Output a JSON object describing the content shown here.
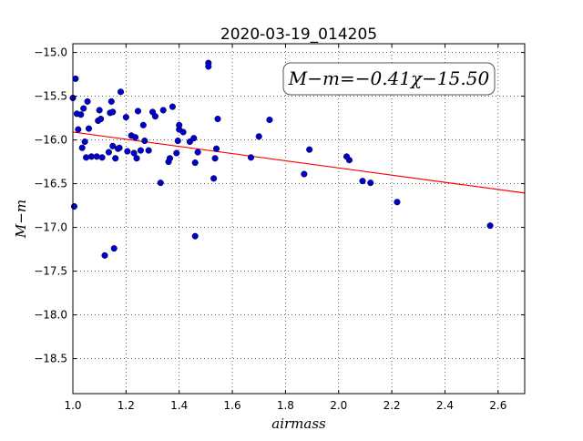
{
  "chart_data": {
    "type": "scatter",
    "title": "2020-03-19_014205",
    "xlabel": "airmass",
    "ylabel": "M−m",
    "xlim": [
      1.0,
      2.7
    ],
    "ylim": [
      -14.9,
      -18.9
    ],
    "y_axis_inverted": true,
    "grid": true,
    "xticks": [
      "1.0",
      "1.2",
      "1.4",
      "1.6",
      "1.8",
      "2.0",
      "2.2",
      "2.4",
      "2.6"
    ],
    "yticks": [
      "−15.0",
      "−15.5",
      "−16.0",
      "−16.5",
      "−17.0",
      "−17.5",
      "−18.0",
      "−18.5"
    ],
    "annotation": "M−m=−0.41χ−15.50",
    "fit": {
      "slope": -0.41,
      "intercept": -15.5,
      "color": "#ff0000"
    },
    "point_color": "#0000cc",
    "points": [
      [
        1.0,
        -15.52
      ],
      [
        1.005,
        -16.76
      ],
      [
        1.01,
        -15.3
      ],
      [
        1.015,
        -15.7
      ],
      [
        1.02,
        -15.88
      ],
      [
        1.03,
        -15.71
      ],
      [
        1.035,
        -16.09
      ],
      [
        1.04,
        -15.64
      ],
      [
        1.045,
        -16.02
      ],
      [
        1.05,
        -16.2
      ],
      [
        1.055,
        -15.56
      ],
      [
        1.06,
        -15.87
      ],
      [
        1.07,
        -16.19
      ],
      [
        1.09,
        -16.19
      ],
      [
        1.095,
        -15.78
      ],
      [
        1.1,
        -15.66
      ],
      [
        1.105,
        -15.76
      ],
      [
        1.11,
        -16.2
      ],
      [
        1.12,
        -17.32
      ],
      [
        1.135,
        -16.14
      ],
      [
        1.14,
        -15.69
      ],
      [
        1.145,
        -15.56
      ],
      [
        1.15,
        -15.68
      ],
      [
        1.15,
        -16.07
      ],
      [
        1.155,
        -17.24
      ],
      [
        1.16,
        -16.21
      ],
      [
        1.17,
        -16.1
      ],
      [
        1.175,
        -16.09
      ],
      [
        1.18,
        -15.45
      ],
      [
        1.2,
        -15.74
      ],
      [
        1.205,
        -16.13
      ],
      [
        1.22,
        -15.95
      ],
      [
        1.23,
        -16.15
      ],
      [
        1.235,
        -15.97
      ],
      [
        1.24,
        -16.21
      ],
      [
        1.245,
        -15.67
      ],
      [
        1.255,
        -16.12
      ],
      [
        1.265,
        -15.83
      ],
      [
        1.27,
        -16.01
      ],
      [
        1.285,
        -16.12
      ],
      [
        1.3,
        -15.68
      ],
      [
        1.31,
        -15.73
      ],
      [
        1.33,
        -16.49
      ],
      [
        1.34,
        -15.66
      ],
      [
        1.36,
        -16.25
      ],
      [
        1.365,
        -16.21
      ],
      [
        1.375,
        -15.62
      ],
      [
        1.39,
        -16.15
      ],
      [
        1.395,
        -16.01
      ],
      [
        1.4,
        -15.83
      ],
      [
        1.4,
        -15.88
      ],
      [
        1.415,
        -15.91
      ],
      [
        1.44,
        -16.02
      ],
      [
        1.455,
        -15.98
      ],
      [
        1.46,
        -16.26
      ],
      [
        1.46,
        -17.1
      ],
      [
        1.47,
        -16.14
      ],
      [
        1.51,
        -15.12
      ],
      [
        1.51,
        -15.16
      ],
      [
        1.53,
        -16.44
      ],
      [
        1.535,
        -16.21
      ],
      [
        1.54,
        -16.1
      ],
      [
        1.545,
        -15.76
      ],
      [
        1.67,
        -16.2
      ],
      [
        1.7,
        -15.96
      ],
      [
        1.74,
        -15.77
      ],
      [
        1.87,
        -16.39
      ],
      [
        1.89,
        -16.11
      ],
      [
        2.03,
        -16.19
      ],
      [
        2.04,
        -16.23
      ],
      [
        2.09,
        -16.47
      ],
      [
        2.12,
        -16.49
      ],
      [
        2.22,
        -16.71
      ],
      [
        2.57,
        -16.98
      ]
    ]
  }
}
